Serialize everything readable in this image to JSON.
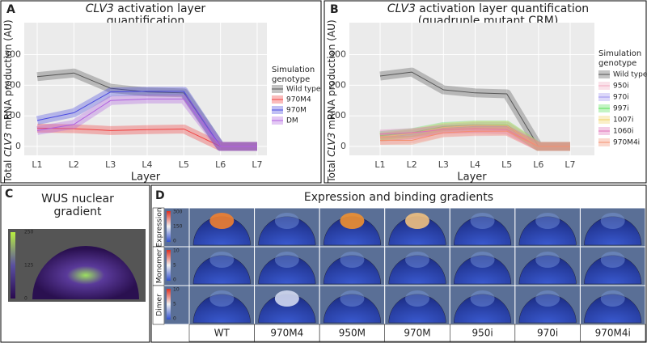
{
  "chart_data": [
    {
      "type": "line",
      "panel_label": "A",
      "title": [
        [
          "CLV3",
          " activation layer"
        ],
        [
          "quantification"
        ]
      ],
      "x_label": "Layer",
      "y_label": [
        "Total ",
        "CLV3",
        " mRNA production (AU)"
      ],
      "categories": [
        "L1",
        "L2",
        "L3",
        "L4",
        "L5",
        "L6",
        "L7"
      ],
      "ylim": [
        -29,
        378
      ],
      "yticks": [
        0,
        100,
        200,
        300
      ],
      "legend_title": [
        "Simulation",
        "genotype"
      ],
      "series": [
        {
          "name": "Wild type",
          "color": "#555555",
          "values": [
            228,
            240,
            190,
            178,
            175,
            0,
            0
          ]
        },
        {
          "name": "970M4",
          "color": "#f04040",
          "values": [
            60,
            58,
            52,
            55,
            57,
            0,
            0
          ]
        },
        {
          "name": "970M",
          "color": "#4a4ae0",
          "values": [
            85,
            110,
            178,
            180,
            180,
            0,
            0
          ]
        },
        {
          "name": "DM",
          "color": "#b060e0",
          "values": [
            52,
            72,
            150,
            155,
            155,
            0,
            0
          ]
        }
      ]
    },
    {
      "type": "line",
      "panel_label": "B",
      "title": [
        [
          "CLV3",
          " activation layer quantification"
        ],
        [
          "(quadruple mutant CRM)"
        ]
      ],
      "x_label": "Layer",
      "y_label": [
        "Total ",
        "CLV3",
        " mRNA production (AU)"
      ],
      "categories": [
        "L1",
        "L2",
        "L3",
        "L4",
        "L5",
        "L6",
        "L7"
      ],
      "ylim": [
        -29,
        378
      ],
      "yticks": [
        0,
        100,
        200,
        300
      ],
      "legend_title": [
        "Simulation",
        "genotype"
      ],
      "series": [
        {
          "name": "Wild type",
          "color": "#555555",
          "values": [
            230,
            243,
            185,
            175,
            172,
            0,
            0
          ]
        },
        {
          "name": "950i",
          "color": "#f2a8c0",
          "values": [
            20,
            25,
            45,
            48,
            50,
            0,
            0
          ]
        },
        {
          "name": "970i",
          "color": "#9a90ee",
          "values": [
            30,
            40,
            60,
            65,
            65,
            0,
            0
          ]
        },
        {
          "name": "997i",
          "color": "#55e055",
          "values": [
            35,
            45,
            65,
            70,
            70,
            0,
            0
          ]
        },
        {
          "name": "1007i",
          "color": "#f0d060",
          "values": [
            30,
            42,
            62,
            68,
            68,
            0,
            0
          ]
        },
        {
          "name": "1060i",
          "color": "#e070b8",
          "values": [
            40,
            45,
            55,
            58,
            55,
            0,
            0
          ]
        },
        {
          "name": "970M4i",
          "color": "#f49070",
          "values": [
            20,
            20,
            45,
            50,
            50,
            0,
            0
          ]
        }
      ]
    }
  ],
  "panel_c": {
    "label": "C",
    "title_lines": [
      "WUS nuclear",
      "gradient"
    ],
    "colorbar_ticks": [
      "250",
      "125",
      "0"
    ]
  },
  "panel_d": {
    "label": "D",
    "title": "Expression and binding gradients",
    "rows": [
      {
        "name": "Expression",
        "colorbar_ticks": [
          "300",
          "150",
          "0"
        ]
      },
      {
        "name": "Monomer",
        "colorbar_ticks": [
          "10",
          "5",
          "0"
        ]
      },
      {
        "name": "Dimer",
        "colorbar_ticks": [
          "10",
          "5",
          "0"
        ]
      }
    ],
    "columns": [
      "WT",
      "970M4",
      "950M",
      "970M",
      "950i",
      "970i",
      "970M4i"
    ]
  }
}
